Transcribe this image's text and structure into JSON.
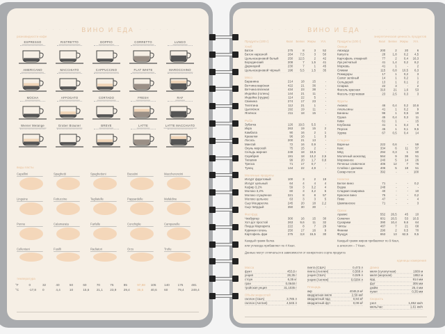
{
  "left_page": {
    "header": "ВИНО И ЕДА",
    "coffee_section": "разновидности кофе",
    "coffees": [
      "ESPRESSO",
      "RISTRETTO",
      "DOPPIO",
      "CORRETTO",
      "LUNGO",
      "AMERICANO",
      "MACCHIATO",
      "CAPPUCCINO",
      "FLAT WHITE",
      "MAROCCHINO",
      "MOCHA",
      "AFFOGATO",
      "CORTADO",
      "FRESH",
      "RAF",
      "Wiener Melange",
      "Grober Brauner",
      "BREVE",
      "LATTE",
      "LATTE MACCHIATO"
    ],
    "pasta_section": "виды пасты",
    "pastas": [
      "Capellini",
      "Spaghetti",
      "Spaghettoni",
      "Bucatini",
      "Maccheroncini",
      "Linguine",
      "Fettuccine",
      "Tagliatelle",
      "Pappardelle",
      "Mafaldine",
      "Penne",
      "Calamarata",
      "Farfalle",
      "Conchiglie",
      "Campanelle",
      "Cellentani",
      "Fusilli",
      "Radiatori",
      "Orzo",
      "Trofie"
    ],
    "temperature_section": "температура",
    "fahrenheit": [
      "°F",
      "0",
      "32",
      "40",
      "50",
      "60",
      "70",
      "75",
      "85",
      "97,88",
      "105",
      "140",
      "175",
      "481"
    ],
    "celsius": [
      "°C",
      "-17,8",
      "0",
      "4,4",
      "10",
      "15,6",
      "21,1",
      "23,9",
      "29,4",
      "36,6",
      "40,6",
      "60",
      "79,4",
      "249,4"
    ]
  },
  "right_page": {
    "header": "ВИНО И ЕДА",
    "subheader": "энергетическая ценность продуктов",
    "columns": [
      "Продукты (100 г)",
      "Ккал",
      "Белки",
      "Жиры",
      "Угл."
    ],
    "left_table": [
      {
        "category": "Хлеб",
        "rows": [
          [
            "Батон",
            "275",
            "8",
            "3",
            "52"
          ],
          [
            "Батон нарезной",
            "264",
            "7,5",
            "3",
            "50"
          ],
          [
            "Цельнозерновой белый",
            "250",
            "12,5",
            "2",
            "42"
          ],
          [
            "Бородинский",
            "208",
            "7",
            "1,5",
            "41"
          ],
          [
            "Дарницкий",
            "230",
            "7",
            "1",
            "45"
          ],
          [
            "Цельнозерновой чёрный",
            "196",
            "5,5",
            "1,5",
            "35"
          ]
        ]
      },
      {
        "category": "Мясо",
        "rows": [
          [
            "Баранина",
            "214",
            "18",
            "15",
            "-"
          ],
          [
            "Ветчина варёная",
            "422",
            "21",
            "36",
            "-"
          ],
          [
            "Ветчина вяленая",
            "434",
            "23",
            "38",
            "-"
          ],
          [
            "Индейка (голень)",
            "144",
            "21",
            "11",
            "-"
          ],
          [
            "Индейка (грудка)",
            "114",
            "22",
            "5",
            "-"
          ],
          [
            "Свинина",
            "274",
            "17",
            "23",
            "-"
          ],
          [
            "Телятина",
            "112",
            "21",
            "1",
            "-"
          ],
          [
            "Цыплёнок",
            "192",
            "19",
            "11",
            "-"
          ],
          [
            "Ягнёнок",
            "211",
            "18",
            "15",
            "-"
          ]
        ]
      },
      {
        "category": "Рыба",
        "rows": [
          [
            "Зубатка",
            "126",
            "19,5",
            "5,5",
            "-"
          ],
          [
            "Икра",
            "263",
            "19",
            "15",
            "2"
          ],
          [
            "Камбала",
            "90",
            "16",
            "2",
            "1"
          ],
          [
            "Креветки",
            "96",
            "16",
            "1",
            "3"
          ],
          [
            "Лосось",
            "200",
            "21",
            "13",
            "-"
          ],
          [
            "Минтай",
            "72",
            "16",
            "0,9",
            "-"
          ],
          [
            "Окунь морской",
            "75",
            "15",
            "2",
            "-"
          ],
          [
            "Сельдь жирная",
            "248",
            "18",
            "19,5",
            "-"
          ],
          [
            "Скумбрия",
            "191",
            "18",
            "13,2",
            "2,5"
          ],
          [
            "Тилапия",
            "99",
            "20",
            "1,7",
            "0,8"
          ],
          [
            "Треска",
            "71",
            "17",
            "0,7",
            "-"
          ],
          [
            "Тунец",
            "144",
            "22",
            "4,9",
            "-"
          ]
        ]
      },
      {
        "category": "Молочные продукты",
        "rows": [
          [
            "Йогурт фруктовый",
            "100",
            "3",
            "2",
            "19"
          ],
          [
            "Йогурт цельный",
            "64",
            "4",
            "4",
            "4"
          ],
          [
            "Кефир 3,2%",
            "59",
            "3",
            "3,2",
            "4"
          ],
          [
            "Молоко 3,2%",
            "60",
            "3",
            "3,2",
            "5"
          ],
          [
            "Молоко сгущённое",
            "321",
            "8",
            "8",
            "57"
          ],
          [
            "Молоко цельное",
            "63",
            "3",
            "3",
            "5"
          ],
          [
            "Сыр Моцарелла",
            "245",
            "20",
            "18",
            "2,2"
          ],
          [
            "Сыр твёрдый",
            "350",
            "30",
            "30",
            "-"
          ]
        ]
      },
      {
        "category": "Фастфуд",
        "rows": [
          [
            "Чизбургер",
            "300",
            "16",
            "15",
            "30"
          ],
          [
            "Хот-дог простой",
            "263",
            "9,6",
            "11",
            "32"
          ],
          [
            "Пицца Маргарита",
            "222",
            "8",
            "7",
            "29"
          ],
          [
            "Куриная голень",
            "250",
            "17",
            "16",
            "9"
          ],
          [
            "Картофель фри",
            "275",
            "3,8",
            "15,5",
            "30"
          ]
        ]
      }
    ],
    "right_table": [
      {
        "category": "Овощи",
        "rows": [
          [
            "Авокадо",
            "200",
            "2",
            "20",
            "6"
          ],
          [
            "Капуста",
            "28",
            "1,8",
            "0,2",
            "4,5"
          ],
          [
            "Картофель отварной",
            "77",
            "2",
            "0,4",
            "16,3"
          ],
          [
            "Лук репчатый",
            "41",
            "1,4",
            "0,2",
            "8,2"
          ],
          [
            "Морковь",
            "41",
            "1",
            "-",
            "2"
          ],
          [
            "Оливки",
            "115",
            "0,8",
            "10,5",
            "6,3"
          ],
          [
            "Помидоры",
            "17",
            "1",
            "0,2",
            "3"
          ],
          [
            "Салат зелёный",
            "14",
            "1",
            "0,2",
            "1"
          ],
          [
            "Сельдерей",
            "13",
            "1",
            "0,1",
            "2"
          ],
          [
            "Спаржа",
            "22",
            "3",
            "-",
            "2"
          ],
          [
            "Фасоль красная",
            "310",
            "21",
            "1,6",
            "53"
          ],
          [
            "Фасоль стручковая",
            "23",
            "2,5",
            "0,3",
            "3"
          ]
        ]
      },
      {
        "category": "Фрукты",
        "rows": [
          [
            "Ананас",
            "46",
            "0,4",
            "0,2",
            "10,6"
          ],
          [
            "Апельсины",
            "41",
            "1",
            "0,2",
            "9"
          ],
          [
            "Бананы",
            "96",
            "1",
            "0,5",
            "19"
          ],
          [
            "Груша",
            "45",
            "0,4",
            "0,3",
            "11"
          ],
          [
            "Киви",
            "61",
            "1",
            "-",
            "15"
          ],
          [
            "Клубника",
            "41",
            "1",
            "0,4",
            "6"
          ],
          [
            "Персик",
            "45",
            "1",
            "0,1",
            "9,5"
          ],
          [
            "Хурма",
            "67",
            "0,5",
            "0,4",
            "14"
          ]
        ]
      },
      {
        "category": "Сладкое",
        "rows": [
          [
            "Варенье",
            "222",
            "0,6",
            "-",
            "59"
          ],
          [
            "Кекс",
            "334",
            "6",
            "11",
            "57"
          ],
          [
            "Мёд",
            "294",
            "0,3",
            "1",
            "80"
          ],
          [
            "Молочный шоколад",
            "564",
            "9",
            "36",
            "51"
          ],
          [
            "Мороженое",
            "240",
            "5",
            "14",
            "26"
          ],
          [
            "Печенье сливочное",
            "406",
            "12",
            "7",
            "76"
          ],
          [
            "Слойка с джемом",
            "406",
            "5",
            "18",
            "51"
          ],
          [
            "Сахар-песок",
            "392",
            "-",
            "-",
            "100"
          ]
        ]
      },
      {
        "category": "Напитки",
        "rows": [
          [
            "Белое вино",
            "71",
            "-",
            "-",
            "0,2"
          ],
          [
            "Водка",
            "248",
            "-",
            "-",
            "-"
          ],
          [
            "Сладкая газировка",
            "40",
            "-",
            "-",
            "10"
          ],
          [
            "Красное вино",
            "75",
            "-",
            "-",
            "0,2"
          ],
          [
            "Пиво",
            "47",
            "-",
            "-",
            "4"
          ],
          [
            "Шампанское",
            "71",
            "-",
            "-",
            "3"
          ]
        ]
      },
      {
        "category": "Орехи",
        "rows": [
          [
            "Арахис",
            "552",
            "26,5",
            "45",
            "10"
          ],
          [
            "Семечки",
            "601",
            "20,5",
            "53",
            "10,5"
          ],
          [
            "Сухарики",
            "390",
            "10,4",
            "9,6",
            "64"
          ],
          [
            "Чипсы",
            "487",
            "7",
            "21",
            "68"
          ],
          [
            "Финики",
            "290",
            "2",
            "0,5",
            "70"
          ],
          [
            "Фундук",
            "653",
            "13",
            "62,5",
            "9,5"
          ]
        ]
      }
    ],
    "note_left_1": "Каждый грамм белка",
    "note_left_2": "или углевода прибавляет по 4 Ккал.",
    "note_right_1": "Каждый грамм жиров прибавляет по 9 Ккал,",
    "note_right_2": "а алкоголя – 7 Ккал.",
    "note_data": "Данные могут отличаться в зависимости от конкретного сорта продукта",
    "units_title": "единицы измерения",
    "units": [
      {
        "category": "Масса",
        "rows": [
          [
            "фунт",
            "453,6 г"
          ],
          [
            "унция",
            "28,35 г"
          ],
          [
            "стоун",
            "6,35 кг"
          ],
          [
            "гран",
            "0,0648 г"
          ],
          [
            "тройская унция",
            "31,1035 г"
          ]
        ]
      },
      {
        "category": "Объём жидкостей",
        "rows": [
          [
            "галлон (США)",
            "3,785 л"
          ],
          [
            "галлон (Англия)",
            "4,546 л"
          ]
        ]
      },
      {
        "category": "",
        "rows": [
          [
            "пинта (США)",
            "0,473 л"
          ],
          [
            "пинта (Англия)",
            "0,568 л"
          ],
          [
            "унция (США)",
            "0,029 л"
          ],
          [
            "унция (Англия)",
            "0,0284 л"
          ]
        ]
      },
      {
        "category": "Площадь",
        "rows": [
          [
            "акр",
            "4046,9 м²"
          ],
          [
            "квадратная миля",
            "2,59 км²"
          ],
          [
            "квадратный ярд",
            "0,84 м²"
          ],
          [
            "квадратный фут",
            "0,09 м²"
          ]
        ]
      },
      {
        "category": "Длина",
        "rows": [
          [
            "миля (сухопутная)",
            "1609 м"
          ],
          [
            "миля (морская)",
            "1852 м"
          ],
          [
            "ярд",
            "914 мм"
          ],
          [
            "фут",
            "305 мм"
          ],
          [
            "дюйм",
            "25,4 мм"
          ],
          [
            "пункт",
            "0,35 мм"
          ]
        ]
      },
      {
        "category": "Скорость",
        "rows": [
          [
            "узел",
            "1,852 км/ч"
          ],
          [
            "миль/час",
            "1,61 км/ч"
          ]
        ]
      }
    ]
  },
  "colors": {
    "accent": "#e8c19c",
    "page": "#f6efe5",
    "cover": "#a9abae",
    "pasta": "#f3d2b3"
  }
}
